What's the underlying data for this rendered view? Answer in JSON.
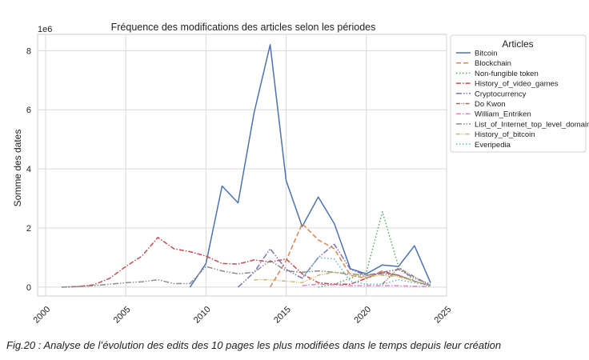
{
  "caption": "Fig.20 : Analyse de l’évolution des edits des 10 pages les plus modifiées dans le temps depuis leur création",
  "chart_data": {
    "type": "line",
    "title": "Fréquence des modifications des articles selon les périodes",
    "xlabel": "",
    "ylabel": "Somme des dates",
    "y_scale_label": "1e6",
    "xlim": [
      1999.5,
      2025
    ],
    "ylim": [
      -0.3,
      8.55
    ],
    "x_ticks": [
      2000,
      2005,
      2010,
      2015,
      2020,
      2025
    ],
    "y_ticks": [
      0,
      2,
      4,
      6,
      8
    ],
    "grid": true,
    "legend_title": "Articles",
    "legend_position": "outside-right",
    "series": [
      {
        "name": "Bitcoin",
        "color": "#4c72b0",
        "dash": "",
        "x": [
          2009,
          2010,
          2011,
          2012,
          2013,
          2014,
          2015,
          2016,
          2017,
          2018,
          2019,
          2020,
          2021,
          2022,
          2023,
          2024
        ],
        "y": [
          0,
          0.8,
          3.42,
          2.85,
          5.9,
          8.2,
          3.6,
          2.05,
          3.05,
          2.15,
          0.62,
          0.45,
          0.75,
          0.7,
          1.4,
          0.15
        ]
      },
      {
        "name": "Blockchain",
        "color": "#dd8452",
        "dash": "6,3",
        "x": [
          2014,
          2015,
          2016,
          2017,
          2018,
          2019,
          2020,
          2021,
          2022,
          2023,
          2024
        ],
        "y": [
          0,
          0.9,
          2.15,
          1.6,
          1.3,
          0.4,
          0.3,
          0.55,
          0.4,
          0.2,
          0.05
        ]
      },
      {
        "name": "Non-fungible token",
        "color": "#55a868",
        "dash": "1.5,2.5",
        "x": [
          2017,
          2018,
          2019,
          2020,
          2021,
          2022,
          2023,
          2024
        ],
        "y": [
          0,
          0.1,
          0.3,
          0.5,
          2.55,
          0.7,
          0.2,
          0.05
        ]
      },
      {
        "name": "History_of_video_games",
        "color": "#c44e52",
        "dash": "6,2,1.5,2",
        "x": [
          2001,
          2002,
          2003,
          2004,
          2005,
          2006,
          2007,
          2008,
          2009,
          2010,
          2011,
          2012,
          2013,
          2014,
          2015,
          2016,
          2017,
          2018,
          2019,
          2020,
          2021,
          2022,
          2023,
          2024
        ],
        "y": [
          0,
          0.02,
          0.08,
          0.3,
          0.7,
          1.05,
          1.68,
          1.3,
          1.2,
          1.05,
          0.8,
          0.78,
          0.92,
          0.85,
          0.95,
          0.45,
          0.15,
          0.1,
          0.1,
          0.3,
          0.5,
          0.4,
          0.2,
          0.05
        ]
      },
      {
        "name": "Cryptocurrency",
        "color": "#8172b3",
        "dash": "7,2,1.5,2,1.5,2",
        "x": [
          2012,
          2013,
          2014,
          2015,
          2016,
          2017,
          2018,
          2019,
          2020,
          2021,
          2022,
          2023,
          2024
        ],
        "y": [
          0,
          0.5,
          1.3,
          0.6,
          0.3,
          1.0,
          1.45,
          0.6,
          0.4,
          0.5,
          0.6,
          0.3,
          0.1
        ]
      },
      {
        "name": "Do Kwon",
        "color": "#937860",
        "dash": "5,1.5,1,1.5,1,1.5",
        "x": [
          2021,
          2022,
          2023,
          2024
        ],
        "y": [
          0.1,
          0.65,
          0.35,
          0.05
        ]
      },
      {
        "name": "William_Entriken",
        "color": "#da8bc3",
        "dash": "6,2,1.5,2",
        "x": [
          2016,
          2017,
          2018,
          2019,
          2020,
          2021,
          2022,
          2023,
          2024
        ],
        "y": [
          0.05,
          0.1,
          0.08,
          0.05,
          0.05,
          0.05,
          0.05,
          0.03,
          0.02
        ]
      },
      {
        "name": "List_of_Internet_top_level_domains",
        "color": "#8c8c8c",
        "dash": "7,2,1.5,2,1.5,2",
        "x": [
          2001,
          2002,
          2003,
          2004,
          2005,
          2006,
          2007,
          2008,
          2009,
          2010,
          2011,
          2012,
          2013,
          2014,
          2015,
          2016,
          2017,
          2018,
          2019,
          2020,
          2021,
          2022,
          2023,
          2024
        ],
        "y": [
          0,
          0.02,
          0.05,
          0.1,
          0.15,
          0.18,
          0.25,
          0.12,
          0.12,
          0.7,
          0.55,
          0.45,
          0.5,
          0.9,
          0.55,
          0.5,
          0.55,
          0.5,
          0.45,
          0.4,
          0.45,
          0.4,
          0.2,
          0.05
        ]
      },
      {
        "name": "History_of_bitcoin",
        "color": "#ccb974",
        "dash": "5,1.5,1,1.5,1,1.5",
        "x": [
          2013,
          2014,
          2015,
          2016,
          2017,
          2018,
          2019,
          2020,
          2021,
          2022,
          2023,
          2024
        ],
        "y": [
          0.25,
          0.25,
          0.2,
          0.15,
          0.4,
          0.5,
          0.4,
          0.35,
          0.4,
          0.35,
          0.2,
          0.05
        ]
      },
      {
        "name": "Everipedia",
        "color": "#64b5cd",
        "dash": "1.5,2.5",
        "x": [
          2016,
          2017,
          2018,
          2019,
          2020,
          2021,
          2022,
          2023,
          2024
        ],
        "y": [
          0.3,
          1.0,
          0.95,
          0.2,
          0.1,
          0.1,
          0.25,
          0.15,
          0.05
        ]
      }
    ]
  }
}
